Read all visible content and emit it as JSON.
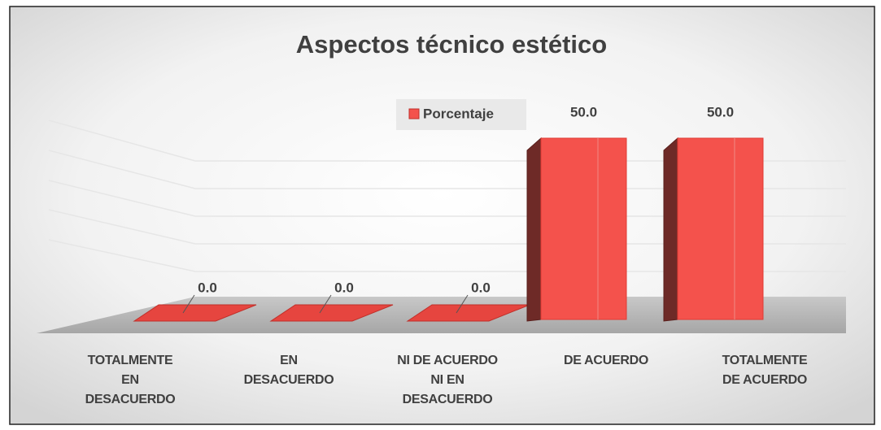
{
  "chart_data": {
    "type": "bar3d",
    "title": "Aspectos técnico estético",
    "categories": [
      "TOTALMENTE\nEN\nDESACUERDO",
      "EN\nDESACUERDO",
      "NI DE ACUERDO\nNI EN\nDESACUERDO",
      "DE ACUERDO",
      "TOTALMENTE\nDE ACUERDO"
    ],
    "series": [
      {
        "name": "Porcentaje",
        "color": "#f4524c",
        "values": [
          0,
          0,
          0,
          50,
          50
        ],
        "value_labels": [
          "0.0",
          "0.0",
          "0.0",
          "50.0",
          "50.0"
        ]
      }
    ]
  }
}
